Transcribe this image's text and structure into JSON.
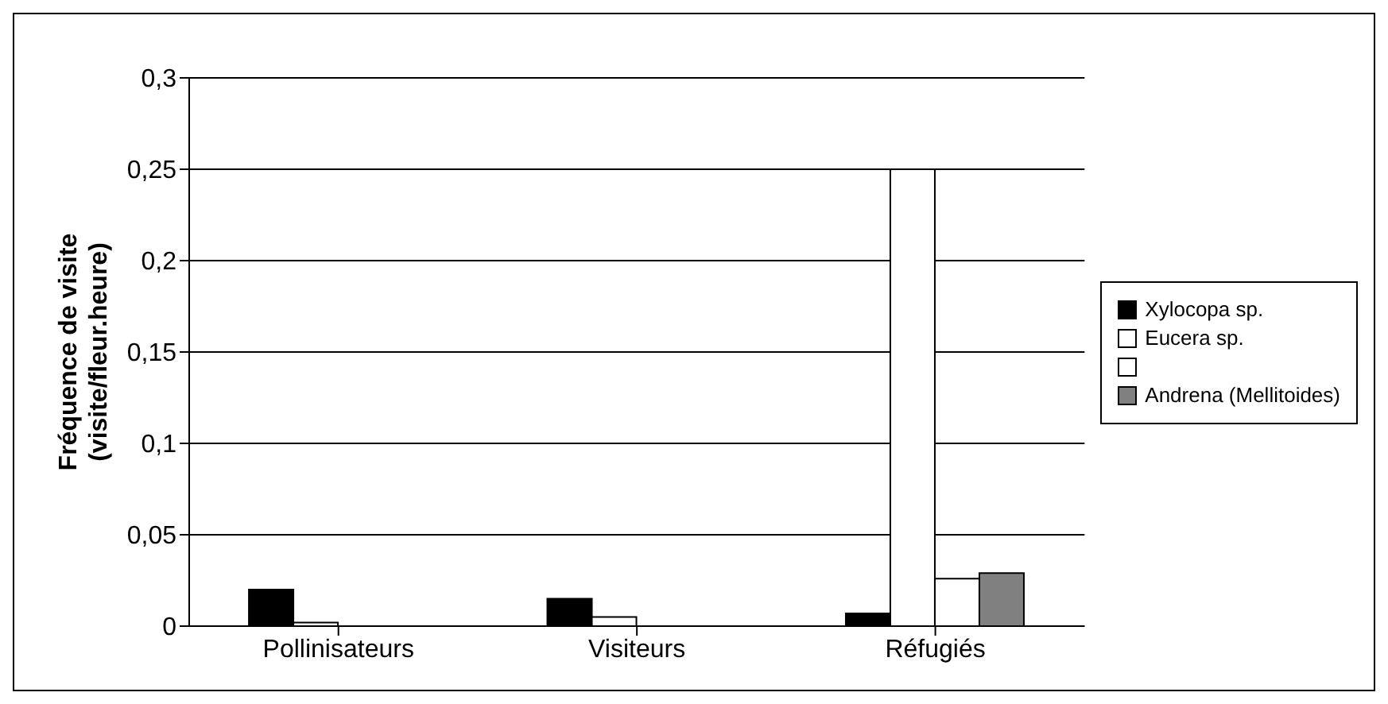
{
  "chart_data": {
    "type": "bar",
    "ylabel": "Fréquence de visite\n(visite/fleur.heure)",
    "categories": [
      "Pollinisateurs",
      "Visiteurs",
      "Réfugiés"
    ],
    "series": [
      {
        "name": "Xylocopa sp.",
        "color": "#000000",
        "values": [
          0.02,
          0.015,
          0.007
        ]
      },
      {
        "name": "Eucera sp.",
        "color": "#ffffff",
        "values": [
          0.002,
          0.005,
          0.25
        ]
      },
      {
        "color": "#ffffff",
        "values": [
          0,
          0,
          0.026
        ]
      },
      {
        "name": "Andrena (Mellitoides)",
        "color": "#808080",
        "values": [
          0,
          0,
          0.029
        ]
      }
    ],
    "ylim": [
      0,
      0.3
    ],
    "yticks": [
      0,
      {
        "value": 0.05,
        "label": "0,05"
      },
      {
        "value": 0.1,
        "label": "0,1"
      },
      {
        "value": 0.15,
        "label": "0,15"
      },
      {
        "value": 0.2,
        "label": "0,2"
      },
      {
        "value": 0.25,
        "label": "0,25"
      },
      {
        "value": 0.3,
        "label": "0,3"
      }
    ],
    "grid": "y",
    "legend": "right"
  }
}
